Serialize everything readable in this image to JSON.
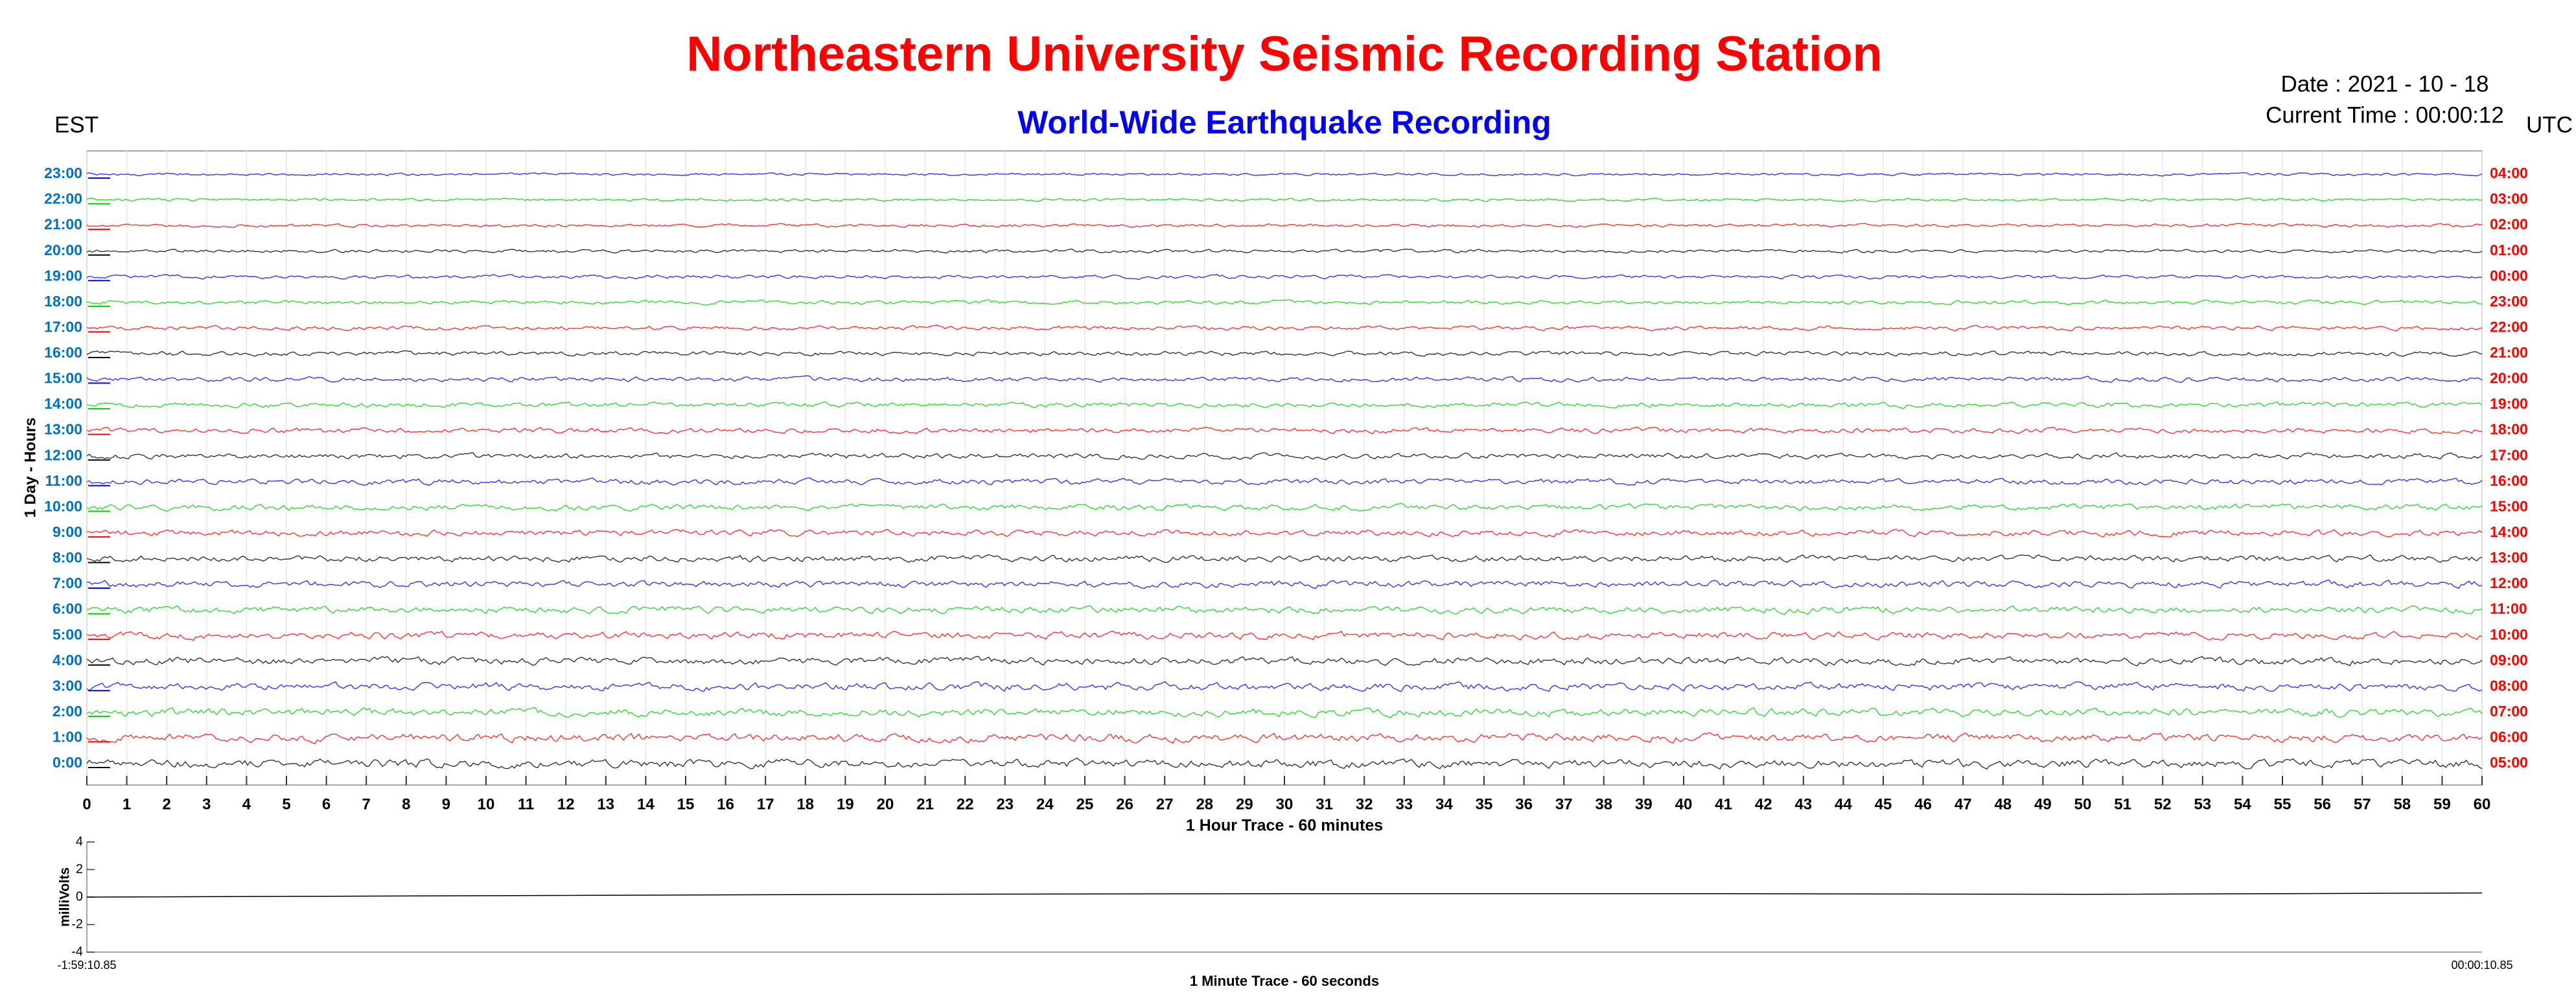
{
  "chart_data": [
    {
      "type": "helicorder",
      "title": "Northeastern University Seismic Recording Station",
      "subtitle": "World-Wide Earthquake Recording",
      "date": "Date : 2021 - 10 - 18",
      "current_time": "Current Time : 00:00:12",
      "left_axis_title": "EST",
      "right_axis_title": "UTC",
      "ylabel": "1 Day - Hours",
      "xlabel": "1 Hour Trace - 60 minutes",
      "categories": [
        "23:00",
        "22:00",
        "21:00",
        "20:00",
        "19:00",
        "18:00",
        "17:00",
        "16:00",
        "15:00",
        "14:00",
        "13:00",
        "12:00",
        "11:00",
        "10:00",
        "9:00",
        "8:00",
        "7:00",
        "6:00",
        "5:00",
        "4:00",
        "3:00",
        "2:00",
        "1:00",
        "0:00"
      ],
      "right_categories": [
        "04:00",
        "03:00",
        "02:00",
        "01:00",
        "00:00",
        "23:00",
        "22:00",
        "21:00",
        "20:00",
        "19:00",
        "18:00",
        "17:00",
        "16:00",
        "15:00",
        "14:00",
        "13:00",
        "12:00",
        "11:00",
        "10:00",
        "09:00",
        "08:00",
        "07:00",
        "06:00",
        "05:00"
      ],
      "row_colors": [
        "#0000ff",
        "#00cc00",
        "#ff0000",
        "#000000"
      ],
      "left_label_color": "#0070c0",
      "right_label_color": "#ff0000",
      "xlim": [
        0,
        60
      ],
      "xticks": [
        0,
        1,
        2,
        3,
        4,
        5,
        6,
        7,
        8,
        9,
        10,
        11,
        12,
        13,
        14,
        15,
        16,
        17,
        18,
        19,
        20,
        21,
        22,
        23,
        24,
        25,
        26,
        27,
        28,
        29,
        30,
        31,
        32,
        33,
        34,
        35,
        36,
        37,
        38,
        39,
        40,
        41,
        42,
        43,
        44,
        45,
        46,
        47,
        48,
        49,
        50,
        51,
        52,
        53,
        54,
        55,
        56,
        57,
        58,
        59,
        60
      ],
      "grid": true
    },
    {
      "type": "line",
      "ylabel": "milliVolts",
      "xlabel": "1 Minute Trace  - 60 seconds",
      "categories": [
        "-1:59:10.85",
        null,
        null,
        null,
        null,
        null,
        "00:00:10.85"
      ],
      "values": [
        0,
        0.1,
        0.2,
        0.25,
        0.25,
        0.2,
        0.3
      ],
      "color": "#000000",
      "ylim": [
        -4,
        4
      ],
      "yticks": [
        -4,
        -2,
        0,
        2,
        4
      ]
    }
  ]
}
